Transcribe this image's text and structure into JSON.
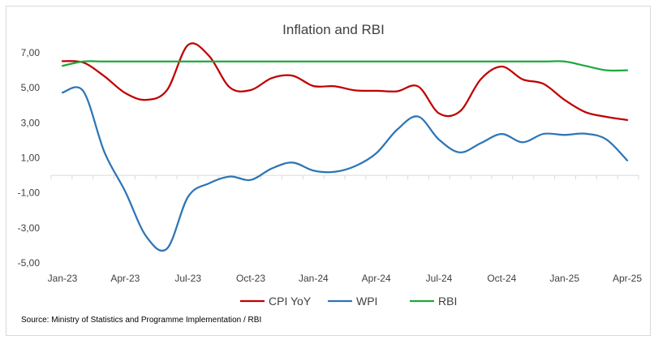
{
  "chart_data": {
    "type": "line",
    "title": "Inflation and RBI",
    "xlabel": "",
    "ylabel": "",
    "ylim": [
      -5,
      8
    ],
    "yticks": [
      7,
      5,
      3,
      1,
      -1,
      -3,
      -5
    ],
    "ytick_labels": [
      "7,00",
      "5,00",
      "3,00",
      "1,00",
      "-1,00",
      "-3,00",
      "-5,00"
    ],
    "x": [
      "Jan-23",
      "Feb-23",
      "Mar-23",
      "Apr-23",
      "May-23",
      "Jun-23",
      "Jul-23",
      "Aug-23",
      "Sep-23",
      "Oct-23",
      "Nov-23",
      "Dec-23",
      "Jan-24",
      "Feb-24",
      "Mar-24",
      "Apr-24",
      "May-24",
      "Jun-24",
      "Jul-24",
      "Aug-24",
      "Sep-24",
      "Oct-24",
      "Nov-24",
      "Dec-24",
      "Jan-25",
      "Feb-25",
      "Mar-25",
      "Apr-25"
    ],
    "xtick_labels": [
      "Jan-23",
      "Apr-23",
      "Jul-23",
      "Oct-23",
      "Jan-24",
      "Apr-24",
      "Jul-24",
      "Oct-24",
      "Jan-25",
      "Apr-25"
    ],
    "xtick_indices": [
      0,
      3,
      6,
      9,
      12,
      15,
      18,
      21,
      24,
      27
    ],
    "series": [
      {
        "name": "CPI YoY",
        "color": "#c00000",
        "values": [
          6.52,
          6.44,
          5.66,
          4.7,
          4.31,
          4.87,
          7.44,
          6.83,
          5.02,
          4.87,
          5.55,
          5.69,
          5.1,
          5.09,
          4.85,
          4.83,
          4.8,
          5.08,
          3.54,
          3.65,
          5.49,
          6.21,
          5.48,
          5.22,
          4.31,
          3.61,
          3.34,
          3.16
        ]
      },
      {
        "name": "WPI",
        "color": "#2e75b6",
        "values": [
          4.73,
          4.8,
          1.34,
          -0.92,
          -3.48,
          -4.18,
          -1.23,
          -0.46,
          -0.07,
          -0.26,
          0.39,
          0.73,
          0.27,
          0.2,
          0.53,
          1.26,
          2.61,
          3.36,
          2.04,
          1.31,
          1.84,
          2.36,
          1.89,
          2.37,
          2.31,
          2.38,
          2.05,
          0.85
        ]
      },
      {
        "name": "RBI",
        "color": "#1ea83c",
        "values": [
          6.25,
          6.5,
          6.5,
          6.5,
          6.5,
          6.5,
          6.5,
          6.5,
          6.5,
          6.5,
          6.5,
          6.5,
          6.5,
          6.5,
          6.5,
          6.5,
          6.5,
          6.5,
          6.5,
          6.5,
          6.5,
          6.5,
          6.5,
          6.5,
          6.5,
          6.25,
          6.0,
          6.0
        ]
      }
    ],
    "legend_position": "bottom-center",
    "grid": false
  },
  "source_text": "Source: Ministry of Statistics and Programme Implementation / RBI"
}
